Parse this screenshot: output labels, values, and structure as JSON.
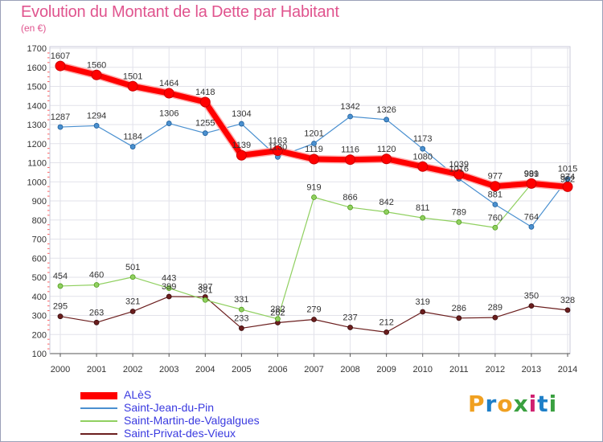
{
  "title": "Evolution du Montant de la Dette par Habitant",
  "unit": "(en €)",
  "brand": {
    "letters": [
      "P",
      "r",
      "o",
      "x",
      "i",
      "t",
      "i"
    ],
    "colors": [
      "#f0a020",
      "#1e7fc8",
      "#f0a020",
      "#3aa040",
      "#d02070",
      "#1e7fc8",
      "#3aa040"
    ]
  },
  "chart_data": {
    "type": "line",
    "categories": [
      "2000",
      "2001",
      "2002",
      "2003",
      "2004",
      "2005",
      "2006",
      "2007",
      "2008",
      "2009",
      "2010",
      "2011",
      "2012",
      "2013",
      "2014"
    ],
    "y_ticks": [
      "100",
      "200",
      "300",
      "400",
      "500",
      "600",
      "700",
      "800",
      "900",
      "1000",
      "1100",
      "1200",
      "1300",
      "1400",
      "1500",
      "1600",
      "1700"
    ],
    "ylim": [
      100,
      1700
    ],
    "grid": true,
    "legend_position": "bottom-left",
    "series": [
      {
        "name": "ALèS",
        "color": "#ff0000",
        "values": [
          1607,
          1560,
          1501,
          1464,
          1418,
          1139,
          1163,
          1119,
          1116,
          1120,
          1080,
          1039,
          977,
          991,
          974
        ],
        "labels": [
          "1607",
          "1560",
          "1501",
          "1464",
          "1418",
          "1139",
          "1163",
          "1119",
          "1116",
          "1120",
          "1080",
          "1039",
          "977",
          "991",
          "974"
        ]
      },
      {
        "name": "Saint-Jean-du-Pin",
        "color": "#4a90d0",
        "values": [
          1287,
          1294,
          1184,
          1306,
          1255,
          1304,
          1130,
          1201,
          1342,
          1326,
          1173,
          1016,
          881,
          764,
          1015
        ],
        "labels": [
          "1287",
          "1294",
          "1184",
          "1306",
          "1255",
          "1304",
          "1130",
          "1201",
          "1342",
          "1326",
          "1173",
          "1016",
          "881",
          "764",
          "1015"
        ]
      },
      {
        "name": "Saint-Martin-de-Valgalgues",
        "color": "#90d060",
        "values": [
          454,
          460,
          501,
          443,
          381,
          331,
          282,
          919,
          866,
          842,
          811,
          789,
          760,
          989,
          962
        ],
        "labels": [
          "454",
          "460",
          "501",
          "443",
          "381",
          "331",
          "282",
          "919",
          "866",
          "842",
          "811",
          "789",
          "760",
          "989",
          "962"
        ]
      },
      {
        "name": "Saint-Privat-des-Vieux",
        "color": "#6b1e1e",
        "values": [
          295,
          263,
          321,
          399,
          397,
          233,
          262,
          279,
          237,
          212,
          319,
          286,
          289,
          350,
          328
        ],
        "labels": [
          "295",
          "263",
          "321",
          "399",
          "397",
          "233",
          "262",
          "279",
          "237",
          "212",
          "319",
          "286",
          "289",
          "350",
          "328"
        ]
      }
    ]
  }
}
